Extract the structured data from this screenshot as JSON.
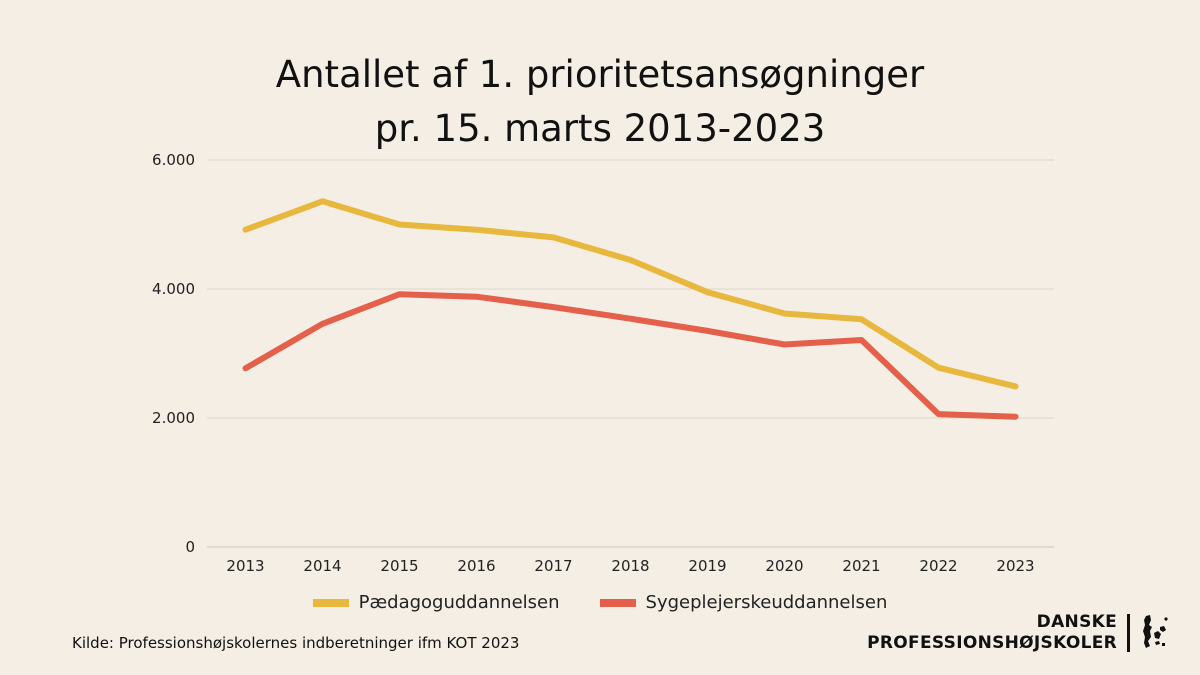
{
  "chart_data": {
    "type": "line",
    "title_lines": [
      "Antallet af 1. prioritetsansøgninger",
      "pr. 15. marts 2013-2023"
    ],
    "x": [
      "2013",
      "2014",
      "2015",
      "2016",
      "2017",
      "2018",
      "2019",
      "2020",
      "2021",
      "2022",
      "2023"
    ],
    "y_ticks": [
      0,
      2000,
      4000,
      6000
    ],
    "y_tick_labels": [
      "0",
      "2.000",
      "4.000",
      "6.000"
    ],
    "ylim": [
      0,
      6000
    ],
    "grid": true,
    "legend_position": "bottom",
    "series": [
      {
        "name": "Pædagoguddannelsen",
        "color": "#e8b73d",
        "values": [
          4920,
          5360,
          5000,
          4920,
          4800,
          4450,
          3950,
          3620,
          3530,
          2780,
          2490
        ]
      },
      {
        "name": "Sygeplejerskeuddannelsen",
        "color": "#e4604a",
        "values": [
          2770,
          3460,
          3920,
          3880,
          3720,
          3540,
          3350,
          3140,
          3210,
          2060,
          2020
        ]
      }
    ]
  },
  "footer": {
    "source": "Kilde: Professionshøjskolernes indberetninger ifm KOT 2023",
    "logo_line1": "DANSKE",
    "logo_line2": "PROFESSIONSHØJSKOLER",
    "logo_icon": "denmark-map-icon"
  }
}
